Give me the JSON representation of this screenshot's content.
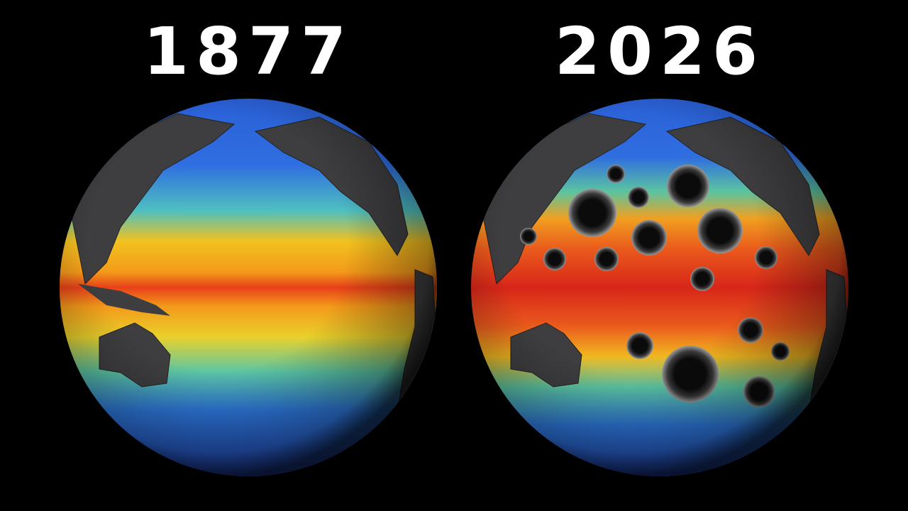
{
  "panels": [
    {
      "label": "1877"
    },
    {
      "label": "2026"
    }
  ]
}
